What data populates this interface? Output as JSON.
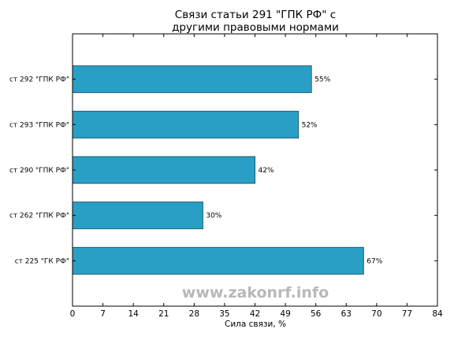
{
  "chart_data": {
    "type": "bar",
    "orientation": "horizontal",
    "title_lines": [
      "Связи статьи 291 \"ГПК РФ\" с",
      "другими правовыми нормами"
    ],
    "categories": [
      "ст 292 \"ГПК РФ\"",
      "ст 293 \"ГПК РФ\"",
      "ст 290 \"ГПК РФ\"",
      "ст 262 \"ГПК РФ\"",
      "ст 225 \"ГК РФ\""
    ],
    "values": [
      55,
      52,
      42,
      30,
      67
    ],
    "value_labels": [
      "55%",
      "52%",
      "42%",
      "30%",
      "67%"
    ],
    "xlabel": "Сила связи, %",
    "ylabel": "",
    "xlim": [
      0,
      84
    ],
    "xticks": [
      0,
      7,
      14,
      21,
      28,
      35,
      42,
      49,
      56,
      63,
      70,
      77,
      84
    ],
    "grid": false,
    "legend": "none",
    "bar_color": "#2a9fc6",
    "bar_edge_color": "#1a5a70"
  },
  "watermark": "www.zakonrf.info"
}
